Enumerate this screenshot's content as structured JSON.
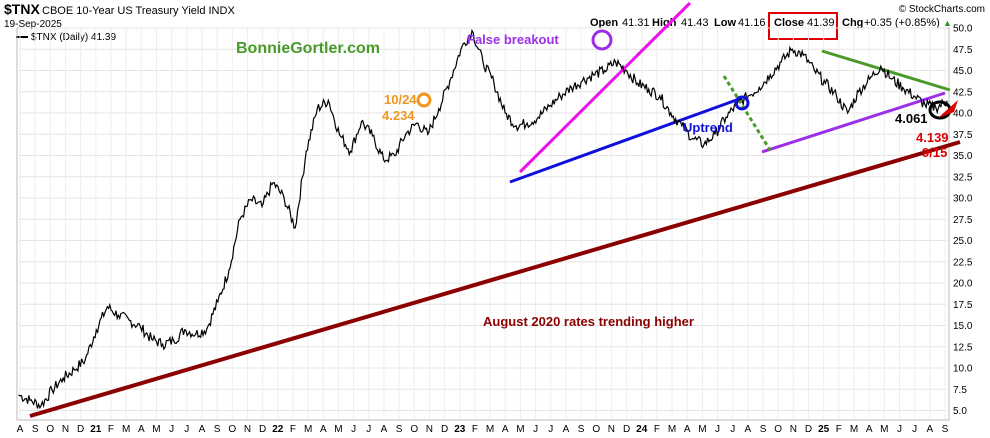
{
  "header": {
    "symbol": "$TNX",
    "description": "CBOE 10-Year US Treasury Yield INDX",
    "date": "19-Sep-2025",
    "source": "© StockCharts.com",
    "legend_label": "$TNX (Daily) 41.39",
    "open_label": "Open",
    "open_value": "41.31",
    "high_label": "High",
    "high_value": "41.43",
    "low_label": "Low",
    "low_value": "41.16",
    "close_label": "Close",
    "close_value": "41.39",
    "chg_label": "Chg",
    "chg_value": "+0.35 (+0.85%)",
    "chg_arrow": "▲"
  },
  "watermark": "BonnieGortler.com",
  "colors": {
    "price": "#000000",
    "grid": "#e3e3e3",
    "maroon": "#8b0000",
    "blue": "#1010dd",
    "magenta": "#ee11ee",
    "purple": "#9b30e8",
    "green": "#4a9a2a",
    "orange": "#f0961e",
    "red": "#dd0000",
    "close_box": "#e00000",
    "chg_green": "#2a9a2a"
  },
  "annotations": {
    "false_breakout": "False breakout",
    "uptrend": "Uptrend",
    "trend_text": "August 2020 rates trending higher",
    "oct_label": "10/24",
    "oct_value": "4.234",
    "val_4061": "4.061",
    "val_4139": "4.139",
    "date_915": "9/15"
  },
  "chart_data": {
    "type": "line",
    "title": "$TNX CBOE 10-Year US Treasury Yield INDX",
    "series_name": "$TNX (Daily)",
    "ylim": [
      4.0,
      50.0
    ],
    "y_ticks": [
      "5.0",
      "7.5",
      "10.0",
      "12.5",
      "15.0",
      "17.5",
      "20.0",
      "22.5",
      "25.0",
      "27.5",
      "30.0",
      "32.5",
      "35.0",
      "37.5",
      "40.0",
      "42.5",
      "45.0",
      "47.5",
      "50.0"
    ],
    "x_labels": [
      "A",
      "S",
      "O",
      "N",
      "D",
      "21",
      "F",
      "M",
      "A",
      "M",
      "J",
      "J",
      "A",
      "S",
      "O",
      "N",
      "D",
      "22",
      "F",
      "M",
      "A",
      "M",
      "J",
      "J",
      "A",
      "S",
      "O",
      "N",
      "D",
      "23",
      "F",
      "M",
      "A",
      "M",
      "J",
      "J",
      "A",
      "S",
      "O",
      "N",
      "D",
      "24",
      "F",
      "M",
      "A",
      "M",
      "J",
      "J",
      "A",
      "S",
      "O",
      "N",
      "D",
      "25",
      "F",
      "M",
      "A",
      "M",
      "J",
      "J",
      "A",
      "S"
    ],
    "x_bold": [
      "21",
      "22",
      "23",
      "24",
      "25"
    ],
    "points": [
      [
        0,
        6.8
      ],
      [
        1,
        6.2
      ],
      [
        2,
        5.6
      ],
      [
        3,
        7.4
      ],
      [
        4,
        8.8
      ],
      [
        5,
        9.8
      ],
      [
        6,
        11.0
      ],
      [
        7,
        14.5
      ],
      [
        8,
        17.2
      ],
      [
        9,
        16.2
      ],
      [
        10,
        15.6
      ],
      [
        11,
        14.8
      ],
      [
        12,
        13.4
      ],
      [
        13,
        12.8
      ],
      [
        14,
        13.2
      ],
      [
        15,
        14.5
      ],
      [
        16,
        14.0
      ],
      [
        17,
        14.6
      ],
      [
        18,
        17.8
      ],
      [
        19,
        21.5
      ],
      [
        20,
        27.5
      ],
      [
        21,
        29.8
      ],
      [
        22,
        29.0
      ],
      [
        23,
        31.8
      ],
      [
        24,
        30.0
      ],
      [
        25,
        26.5
      ],
      [
        26,
        35.5
      ],
      [
        27,
        40.5
      ],
      [
        28,
        41.5
      ],
      [
        29,
        37.5
      ],
      [
        30,
        35.5
      ],
      [
        31,
        39.0
      ],
      [
        32,
        37.3
      ],
      [
        33,
        34.5
      ],
      [
        34,
        35.0
      ],
      [
        35,
        37.5
      ],
      [
        36,
        38.8
      ],
      [
        37,
        37.5
      ],
      [
        38,
        40.5
      ],
      [
        39,
        43.8
      ],
      [
        40,
        47.5
      ],
      [
        41,
        49.7
      ],
      [
        42,
        46.0
      ],
      [
        43,
        43.5
      ],
      [
        44,
        40.0
      ],
      [
        45,
        38.5
      ],
      [
        46,
        38.8
      ],
      [
        47,
        39.5
      ],
      [
        48,
        40.8
      ],
      [
        49,
        42.0
      ],
      [
        50,
        43.0
      ],
      [
        51,
        43.8
      ],
      [
        52,
        44.5
      ],
      [
        53,
        45.0
      ],
      [
        54,
        46.0
      ],
      [
        55,
        45.0
      ],
      [
        56,
        43.5
      ],
      [
        57,
        42.8
      ],
      [
        58,
        42.0
      ],
      [
        59,
        40.0
      ],
      [
        60,
        38.5
      ],
      [
        61,
        37.0
      ],
      [
        62,
        36.3
      ],
      [
        63,
        37.5
      ],
      [
        64,
        39.5
      ],
      [
        65,
        41.0
      ],
      [
        66,
        42.0
      ],
      [
        67,
        43.0
      ],
      [
        68,
        44.5
      ],
      [
        69,
        46.0
      ],
      [
        70,
        47.5
      ],
      [
        71,
        46.8
      ],
      [
        72,
        45.0
      ],
      [
        73,
        43.5
      ],
      [
        74,
        42.0
      ],
      [
        75,
        40.0
      ],
      [
        76,
        42.5
      ],
      [
        77,
        44.0
      ],
      [
        78,
        45.5
      ],
      [
        79,
        44.0
      ],
      [
        80,
        43.0
      ],
      [
        81,
        42.0
      ],
      [
        82,
        41.0
      ],
      [
        83,
        40.61
      ],
      [
        84,
        41.39
      ]
    ]
  }
}
